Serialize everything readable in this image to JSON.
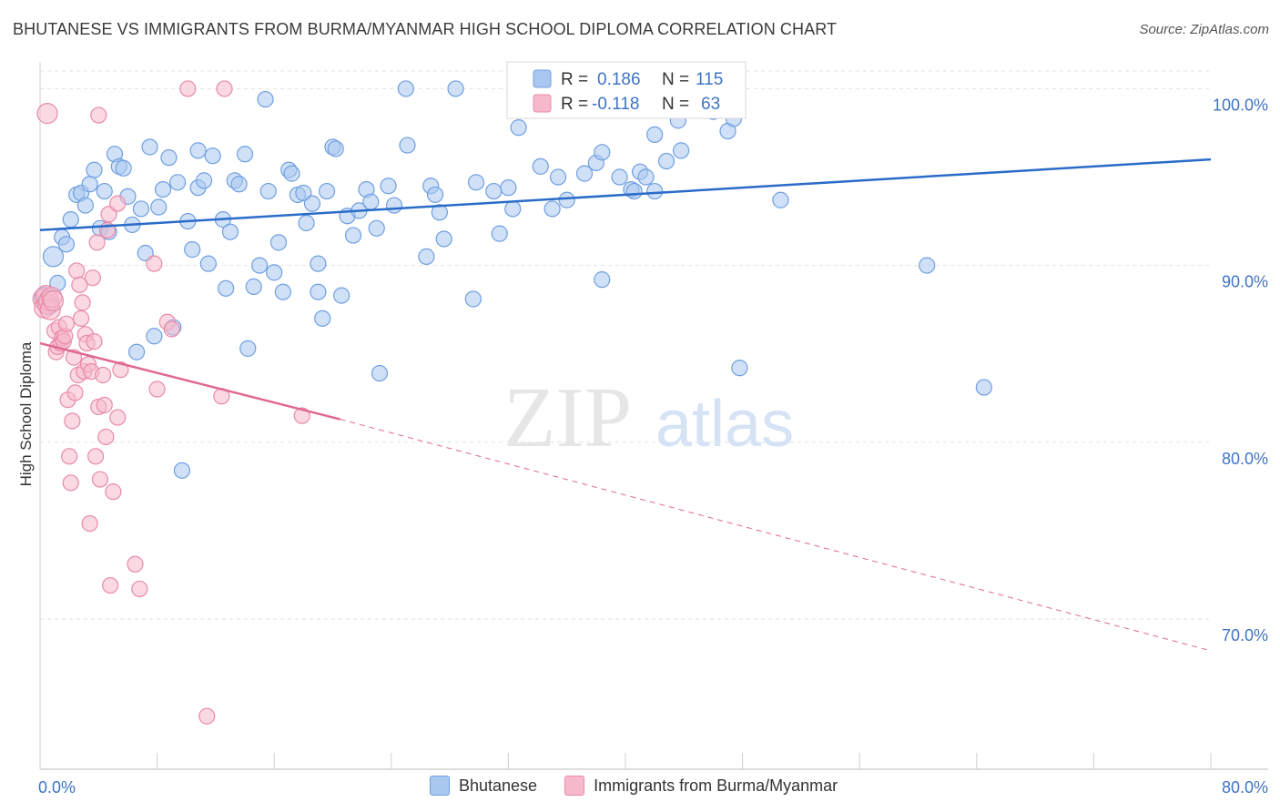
{
  "title": "BHUTANESE VS IMMIGRANTS FROM BURMA/MYANMAR HIGH SCHOOL DIPLOMA CORRELATION CHART",
  "source": "Source: ZipAtlas.com",
  "watermark": {
    "zip": "ZIP",
    "atlas": "atlas"
  },
  "colors": {
    "blue_fill": "#a9c8f0",
    "blue_stroke": "#6f9fe0",
    "blue_line": "#2a6cc8",
    "pink_fill": "#f6b9cc",
    "pink_stroke": "#e98aa8",
    "pink_line": "#e06893",
    "tick_text": "#3f73c4",
    "grid": "#dddddd"
  },
  "legend_box": {
    "rows": [
      {
        "r_label": "R = ",
        "r_value": "0.186",
        "n_label": "N = ",
        "n_value": "115"
      },
      {
        "r_label": "R = ",
        "r_value": "-0.118",
        "n_label": "N = ",
        "n_value": "63"
      }
    ]
  },
  "legend_bottom": {
    "items": [
      "Bhutanese",
      "Immigrants from Burma/Myanmar"
    ]
  },
  "chart_data": {
    "type": "scatter",
    "title": "BHUTANESE VS IMMIGRANTS FROM BURMA/MYANMAR HIGH SCHOOL DIPLOMA CORRELATION CHART",
    "xlabel": "",
    "ylabel": "High School Diploma",
    "xlim": [
      0,
      80
    ],
    "ylim": [
      61.5,
      101
    ],
    "x_tick_labels": [
      "0.0%",
      "80.0%"
    ],
    "y_ticks": [
      70,
      80,
      90,
      100
    ],
    "y_tick_labels": [
      "70.0%",
      "80.0%",
      "90.0%",
      "100.0%"
    ],
    "grid": true,
    "legend_placement": "top-center",
    "series": [
      {
        "name": "Bhutanese",
        "color": "#a9c8f0",
        "r": 0.186,
        "n": 115,
        "trend": {
          "x": [
            0,
            80
          ],
          "y": [
            92.0,
            96.0
          ],
          "style": "solid"
        },
        "points": [
          [
            0.3,
            88.2
          ],
          [
            0.6,
            87.8
          ],
          [
            0.9,
            90.5
          ],
          [
            1.2,
            89.0
          ],
          [
            1.5,
            91.6
          ],
          [
            1.8,
            91.2
          ],
          [
            2.1,
            92.6
          ],
          [
            2.5,
            94.0
          ],
          [
            2.8,
            94.1
          ],
          [
            3.1,
            93.4
          ],
          [
            3.4,
            94.6
          ],
          [
            3.7,
            95.4
          ],
          [
            4.1,
            92.1
          ],
          [
            4.4,
            94.2
          ],
          [
            4.7,
            91.9
          ],
          [
            5.1,
            96.3
          ],
          [
            5.4,
            95.6
          ],
          [
            5.7,
            95.5
          ],
          [
            6.0,
            93.9
          ],
          [
            6.3,
            92.3
          ],
          [
            6.6,
            85.1
          ],
          [
            6.9,
            93.2
          ],
          [
            7.2,
            90.7
          ],
          [
            7.5,
            96.7
          ],
          [
            7.8,
            86.0
          ],
          [
            8.1,
            93.3
          ],
          [
            8.4,
            94.3
          ],
          [
            8.8,
            96.1
          ],
          [
            9.1,
            86.5
          ],
          [
            9.4,
            94.7
          ],
          [
            9.7,
            78.4
          ],
          [
            10.1,
            92.5
          ],
          [
            10.4,
            90.9
          ],
          [
            10.8,
            96.5
          ],
          [
            10.8,
            94.4
          ],
          [
            11.2,
            94.8
          ],
          [
            11.5,
            90.1
          ],
          [
            11.8,
            96.2
          ],
          [
            12.5,
            92.6
          ],
          [
            12.7,
            88.7
          ],
          [
            13.0,
            91.9
          ],
          [
            13.3,
            94.8
          ],
          [
            13.6,
            94.6
          ],
          [
            14.0,
            96.3
          ],
          [
            14.2,
            85.3
          ],
          [
            14.6,
            88.8
          ],
          [
            15.0,
            90.0
          ],
          [
            15.4,
            99.4
          ],
          [
            15.6,
            94.2
          ],
          [
            16.0,
            89.6
          ],
          [
            16.3,
            91.3
          ],
          [
            16.6,
            88.5
          ],
          [
            17.0,
            95.4
          ],
          [
            17.2,
            95.2
          ],
          [
            17.6,
            94.0
          ],
          [
            18.0,
            94.1
          ],
          [
            18.2,
            92.4
          ],
          [
            18.6,
            93.5
          ],
          [
            19.0,
            90.1
          ],
          [
            19.0,
            88.5
          ],
          [
            19.3,
            87.0
          ],
          [
            19.6,
            94.2
          ],
          [
            20.0,
            96.7
          ],
          [
            20.2,
            96.6
          ],
          [
            20.6,
            88.3
          ],
          [
            21.0,
            92.8
          ],
          [
            21.4,
            91.7
          ],
          [
            21.8,
            93.1
          ],
          [
            22.3,
            94.3
          ],
          [
            22.6,
            93.6
          ],
          [
            23.0,
            92.1
          ],
          [
            23.2,
            83.9
          ],
          [
            23.8,
            94.5
          ],
          [
            24.2,
            93.4
          ],
          [
            25.0,
            100.0
          ],
          [
            25.1,
            96.8
          ],
          [
            26.4,
            90.5
          ],
          [
            26.7,
            94.5
          ],
          [
            27.0,
            94.0
          ],
          [
            27.3,
            93.0
          ],
          [
            27.6,
            91.5
          ],
          [
            28.4,
            100.0
          ],
          [
            29.6,
            88.1
          ],
          [
            29.8,
            94.7
          ],
          [
            31.0,
            94.2
          ],
          [
            31.4,
            91.8
          ],
          [
            32.0,
            94.4
          ],
          [
            32.3,
            93.2
          ],
          [
            32.7,
            97.8
          ],
          [
            34.2,
            95.6
          ],
          [
            35.0,
            93.2
          ],
          [
            35.4,
            95.0
          ],
          [
            36.0,
            93.7
          ],
          [
            37.2,
            95.2
          ],
          [
            38.0,
            95.8
          ],
          [
            38.4,
            96.4
          ],
          [
            38.4,
            89.2
          ],
          [
            39.6,
            95.0
          ],
          [
            40.4,
            94.3
          ],
          [
            40.6,
            94.2
          ],
          [
            41.0,
            95.3
          ],
          [
            41.4,
            95.0
          ],
          [
            42.0,
            97.4
          ],
          [
            42.0,
            94.2
          ],
          [
            42.8,
            95.9
          ],
          [
            43.8,
            96.5
          ],
          [
            43.6,
            98.2
          ],
          [
            46.0,
            98.7
          ],
          [
            46.4,
            99.8
          ],
          [
            47.0,
            97.6
          ],
          [
            47.4,
            98.3
          ],
          [
            47.8,
            84.2
          ],
          [
            50.6,
            93.7
          ],
          [
            60.6,
            90.0
          ],
          [
            64.5,
            83.1
          ]
        ]
      },
      {
        "name": "Immigrants from Burma/Myanmar",
        "color": "#f6b9cc",
        "r": -0.118,
        "n": 63,
        "trend": {
          "x": [
            0,
            20.5
          ],
          "y": [
            85.6,
            81.3
          ],
          "style": "solid",
          "dashed_extension": {
            "x": [
              20.5,
              80
            ],
            "y": [
              81.3,
              68.2
            ]
          }
        },
        "points": [
          [
            0.2,
            88.1
          ],
          [
            0.3,
            87.6
          ],
          [
            0.4,
            88.3
          ],
          [
            0.5,
            87.8
          ],
          [
            0.6,
            88.0
          ],
          [
            0.7,
            87.5
          ],
          [
            0.8,
            88.2
          ],
          [
            0.9,
            88.0
          ],
          [
            1.0,
            86.3
          ],
          [
            1.1,
            85.1
          ],
          [
            1.2,
            85.4
          ],
          [
            1.3,
            86.5
          ],
          [
            1.4,
            85.6
          ],
          [
            1.5,
            85.9
          ],
          [
            1.6,
            85.7
          ],
          [
            1.7,
            86.0
          ],
          [
            1.8,
            86.7
          ],
          [
            1.9,
            82.4
          ],
          [
            2.0,
            79.2
          ],
          [
            2.1,
            77.7
          ],
          [
            2.2,
            81.2
          ],
          [
            2.3,
            84.8
          ],
          [
            2.4,
            82.8
          ],
          [
            2.5,
            89.7
          ],
          [
            2.6,
            83.8
          ],
          [
            2.7,
            88.9
          ],
          [
            2.8,
            87.0
          ],
          [
            2.9,
            87.9
          ],
          [
            3.0,
            84.0
          ],
          [
            3.1,
            86.1
          ],
          [
            3.2,
            85.6
          ],
          [
            3.3,
            84.4
          ],
          [
            3.4,
            75.4
          ],
          [
            3.5,
            84.0
          ],
          [
            3.6,
            89.3
          ],
          [
            3.7,
            85.7
          ],
          [
            3.8,
            79.2
          ],
          [
            3.9,
            91.3
          ],
          [
            4.0,
            82.0
          ],
          [
            4.1,
            77.9
          ],
          [
            4.3,
            83.8
          ],
          [
            4.4,
            82.1
          ],
          [
            4.5,
            80.3
          ],
          [
            4.6,
            92.0
          ],
          [
            4.7,
            92.9
          ],
          [
            4.8,
            71.9
          ],
          [
            5.0,
            77.2
          ],
          [
            5.3,
            93.5
          ],
          [
            5.3,
            81.4
          ],
          [
            5.5,
            84.1
          ],
          [
            6.5,
            73.1
          ],
          [
            6.8,
            71.7
          ],
          [
            7.8,
            90.1
          ],
          [
            8.0,
            83.0
          ],
          [
            8.7,
            86.8
          ],
          [
            9.0,
            86.4
          ],
          [
            10.1,
            100.0
          ],
          [
            11.4,
            64.5
          ],
          [
            12.4,
            82.6
          ],
          [
            12.6,
            100.0
          ],
          [
            17.9,
            81.5
          ],
          [
            0.5,
            98.6
          ],
          [
            4.0,
            98.5
          ]
        ]
      }
    ]
  }
}
